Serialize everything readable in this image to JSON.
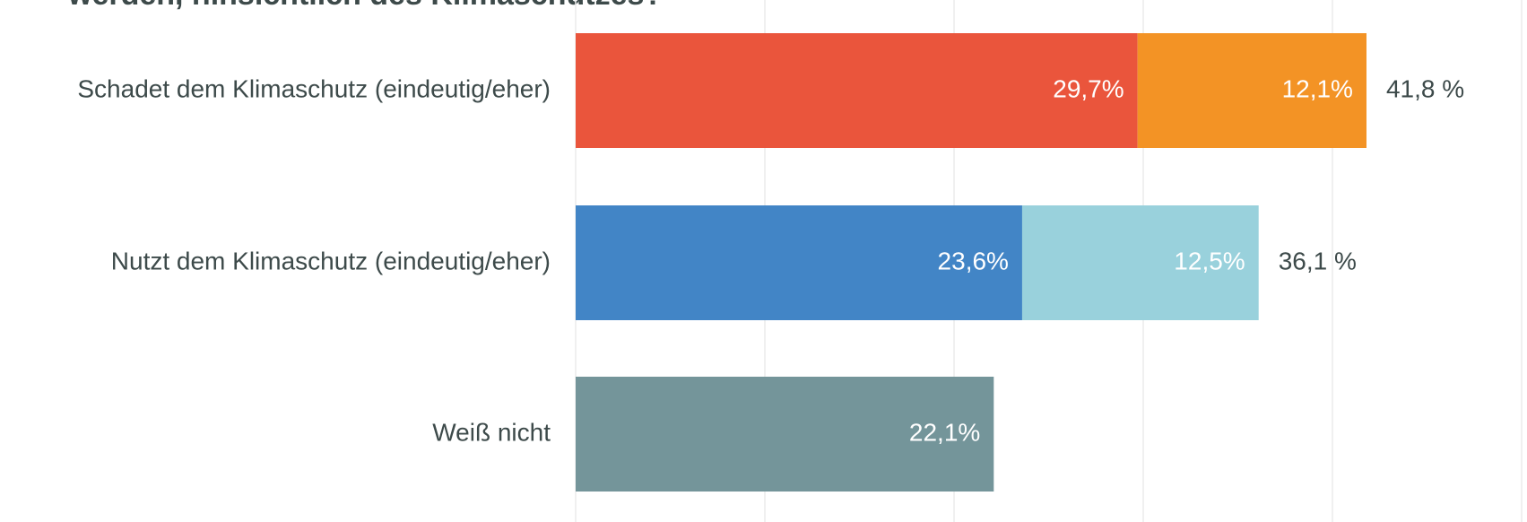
{
  "chart_data": {
    "type": "stacked-bar-horizontal",
    "title": "werden, hinsichtlich des Klimaschutzes?",
    "categories": [
      "Schadet dem Klimaschutz (eindeutig/eher)",
      "Nutzt dem Klimaschutz (eindeutig/eher)",
      "Weiß nicht"
    ],
    "series": [
      {
        "values": [
          29.7,
          23.6,
          22.1
        ],
        "value_labels": [
          "29,7%",
          "23,6%",
          "22,1%"
        ],
        "colors": [
          "#ea553c",
          "#4285c6",
          "#74959a"
        ]
      },
      {
        "values": [
          12.1,
          12.5,
          null
        ],
        "value_labels": [
          "12,1%",
          "12,5%",
          null
        ],
        "colors": [
          "#f39325",
          "#99d1dc",
          null
        ]
      }
    ],
    "totals": [
      41.8,
      36.1,
      null
    ],
    "total_labels": [
      "41,8 %",
      "36,1 %",
      null
    ],
    "xlim": [
      0,
      50
    ],
    "xticks": [
      0,
      10,
      20,
      30,
      40,
      50
    ],
    "grid": true
  }
}
